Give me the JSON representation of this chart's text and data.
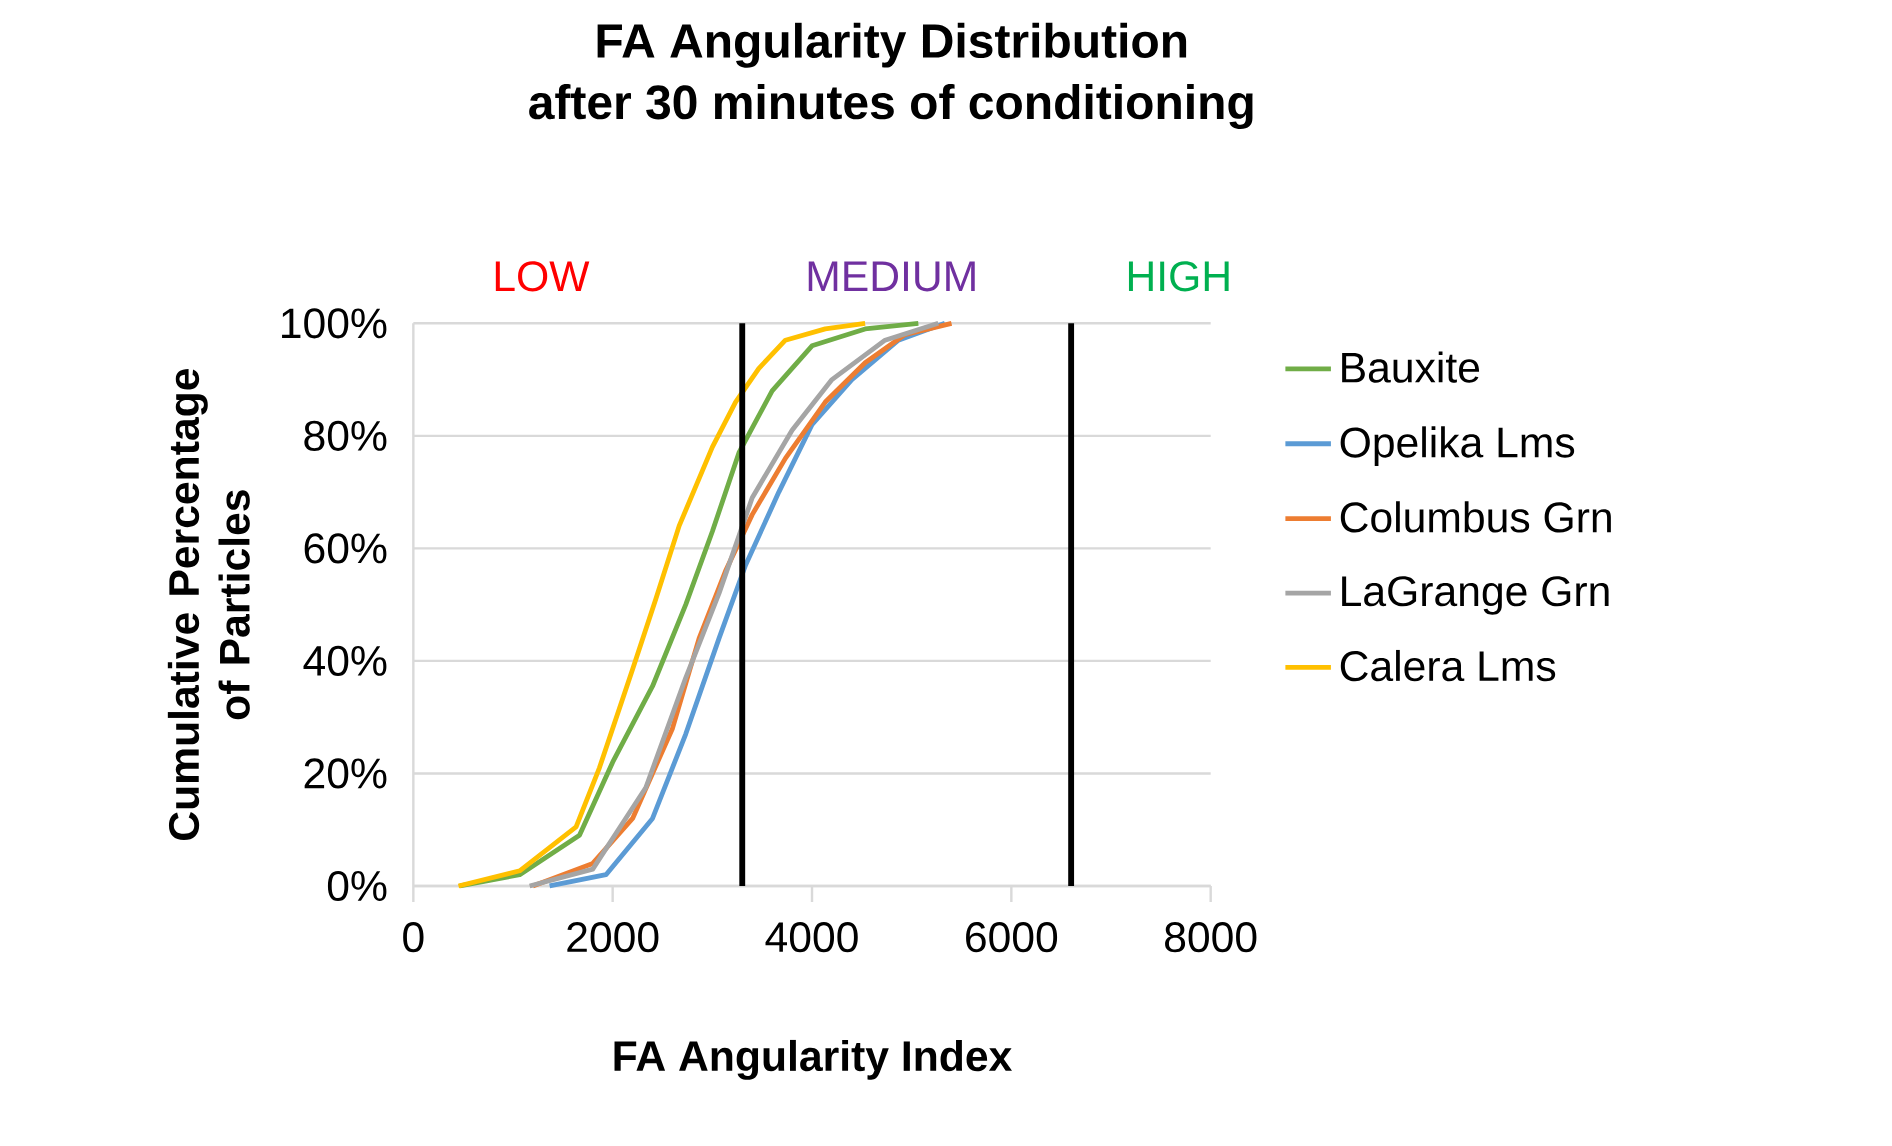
{
  "chart_data": {
    "type": "line",
    "title": "FA Angularity Distribution",
    "subtitle": "after 30 minutes of conditioning",
    "xlabel": "FA Angularity Index",
    "ylabel": "Cumulative Percentage of Particles",
    "annotations": [
      "LOW",
      "MEDIUM",
      "HIGH"
    ],
    "xlim": [
      0,
      8000
    ],
    "xticks": [
      0,
      2000,
      4000,
      6000,
      8000
    ],
    "ylim": [
      0,
      100
    ],
    "yticks": [
      {
        "value": 0,
        "label": "0%"
      },
      {
        "value": 20,
        "label": "20%"
      },
      {
        "value": 40,
        "label": "40%"
      },
      {
        "value": 60,
        "label": "60%"
      },
      {
        "value": 80,
        "label": "80%"
      },
      {
        "value": 100,
        "label": "100%"
      }
    ],
    "grid": "y",
    "legend": "right",
    "marker": "none",
    "line_style": "solid",
    "ref_lines": [
      {
        "axis": "x",
        "value": 3300,
        "color": "#000000"
      },
      {
        "axis": "x",
        "value": 6600,
        "color": "#000000"
      }
    ],
    "series": [
      {
        "name": "Bauxite",
        "color": "#70ad47",
        "x": [
          467,
          1067,
          1667,
          2000,
          2400,
          2733,
          3000,
          3267,
          3600,
          4000,
          4533,
          5067
        ],
        "values": [
          0,
          2,
          9,
          22,
          35.5,
          50,
          63,
          77,
          88,
          96,
          99,
          100
        ]
      },
      {
        "name": "Opelika Lms",
        "color": "#5b9bd5",
        "x": [
          1367,
          1933,
          2400,
          2733,
          3067,
          3333,
          3667,
          4000,
          4400,
          4867,
          5333
        ],
        "values": [
          0,
          2,
          12,
          27,
          44,
          57,
          70,
          82,
          90,
          97,
          100
        ]
      },
      {
        "name": "Columbus Grn",
        "color": "#ed7d31",
        "x": [
          1200,
          1800,
          2200,
          2600,
          2867,
          3133,
          3400,
          3733,
          4133,
          4533,
          4933,
          5400
        ],
        "values": [
          0,
          4,
          12,
          28,
          44,
          56,
          66,
          76,
          86,
          93,
          98,
          100
        ]
      },
      {
        "name": "LaGrange Grn",
        "color": "#a5a5a5",
        "x": [
          1167,
          1800,
          2333,
          2733,
          3067,
          3400,
          3800,
          4200,
          4733,
          5267
        ],
        "values": [
          0,
          3,
          17.5,
          37,
          52,
          69,
          81,
          90,
          97,
          100
        ]
      },
      {
        "name": "Calera Lms",
        "color": "#ffc000",
        "x": [
          453,
          1067,
          1633,
          1867,
          2200,
          2433,
          2667,
          3000,
          3233,
          3467,
          3733,
          4133,
          4533
        ],
        "values": [
          0,
          2.7,
          10.5,
          21,
          38.5,
          51,
          64,
          78,
          86,
          92,
          97,
          99,
          100
        ]
      }
    ]
  }
}
